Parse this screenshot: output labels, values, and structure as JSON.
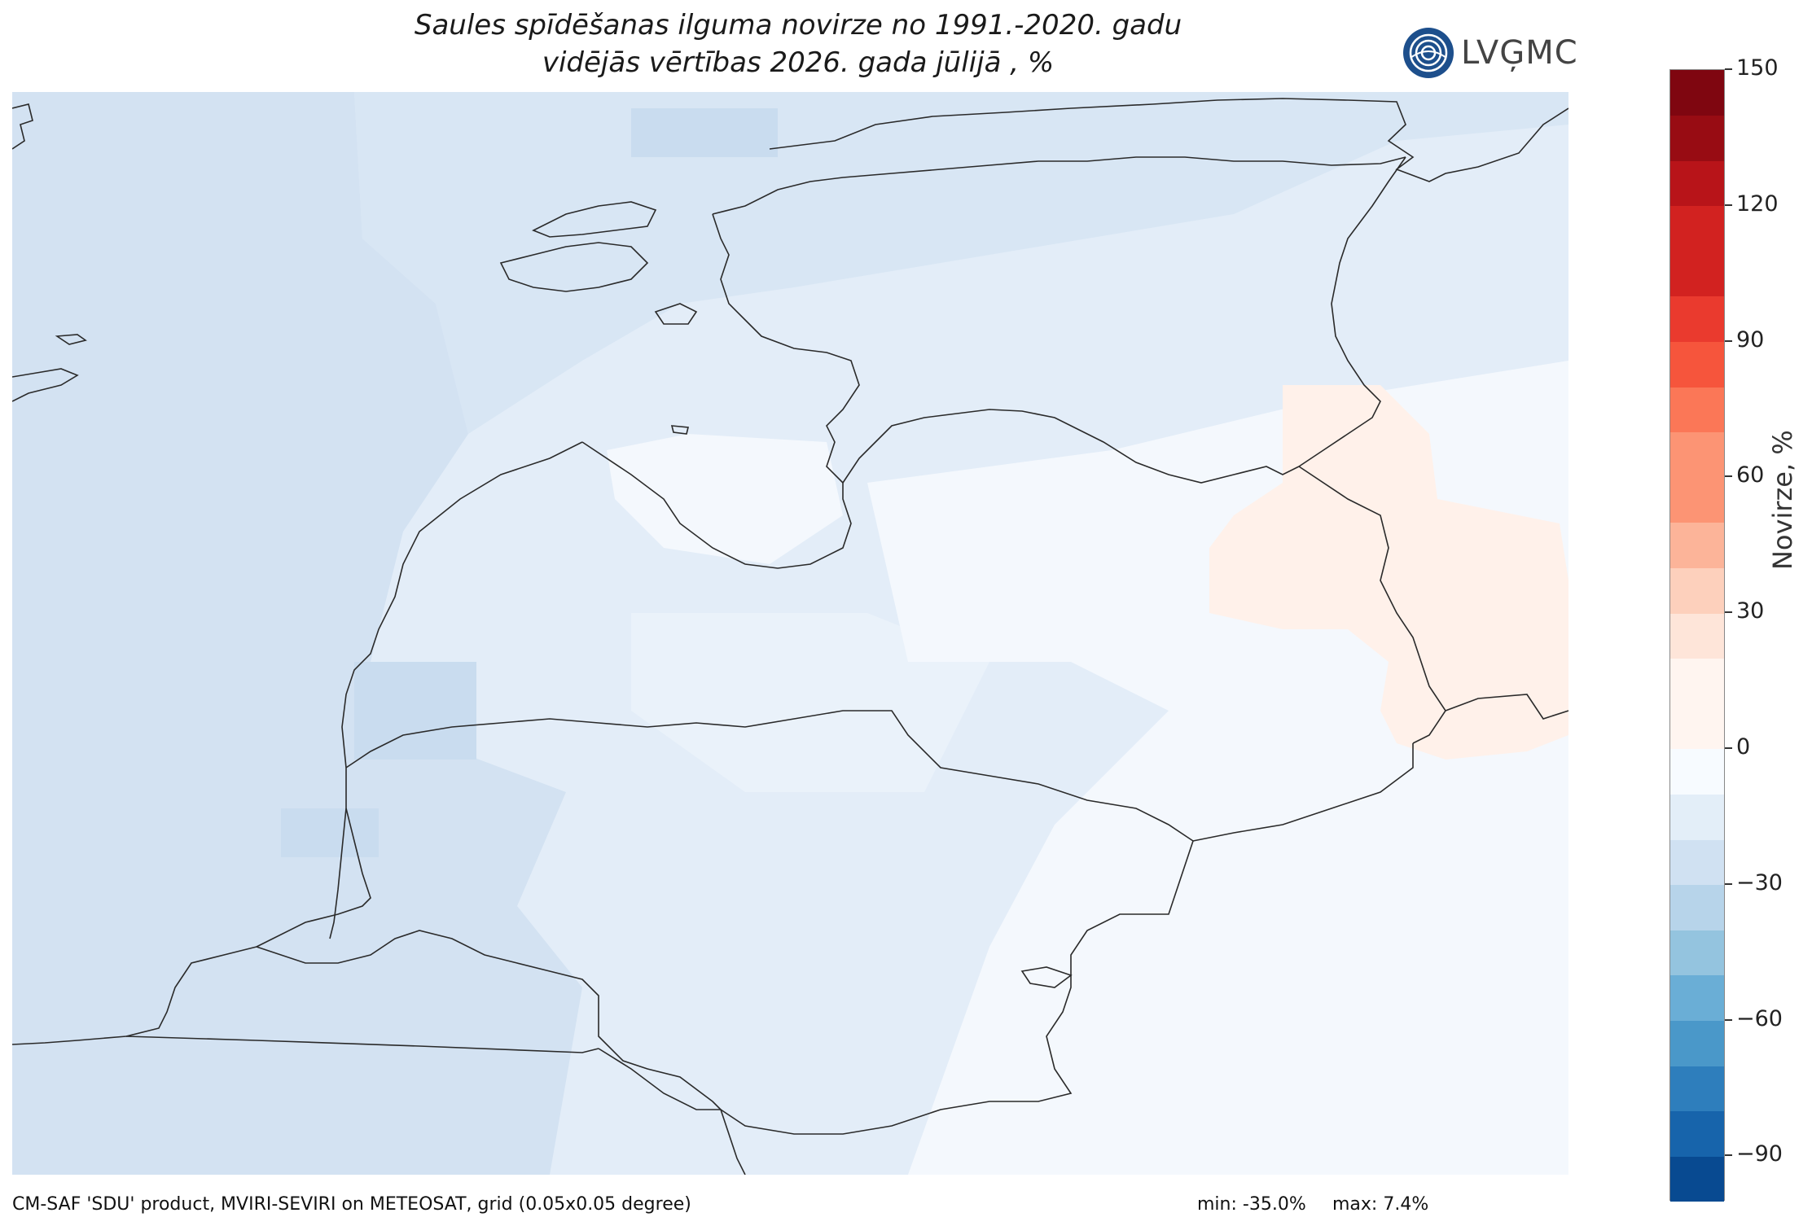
{
  "title_line1": "Saules spīdēšanas ilguma novirze no 1991.-2020. gadu",
  "title_line2": "vidējās vērtības 2026. gada jūlijā , %",
  "logo_text": "LVĢMC",
  "colorbar": {
    "label": "Novirze, %",
    "ticks": [
      "150",
      "120",
      "90",
      "60",
      "30",
      "0",
      "−30",
      "−60",
      "−90"
    ],
    "range": [
      -100,
      150
    ],
    "step": 10,
    "colors": [
      "#084a91",
      "#1764ab",
      "#2e7ebc",
      "#4a98c9",
      "#6aaed6",
      "#94c4df",
      "#b7d4ea",
      "#d0e1f2",
      "#e3eef8",
      "#f7fbff",
      "#fff5f0",
      "#fee5d9",
      "#fdd0bc",
      "#fcb499",
      "#fc9474",
      "#fb7757",
      "#f6553c",
      "#ea3a2e",
      "#d22220",
      "#b81419",
      "#980c13",
      "#7f0610"
    ],
    "color_scale_note": ""
  },
  "footer": {
    "source": "CM-SAF 'SDU' product, MVIRI-SEVIRI on METEOSAT, grid (0.05x0.05 degree)",
    "min": "min: -35.0%",
    "max": "max: 7.4%"
  },
  "map_colors": {
    "sea": "#d3e2f2",
    "land_west": "#dde9f5",
    "land_light": "#eef4fb",
    "land_white": "#f7fbff",
    "positive": "#fff1ea",
    "border": "#2a2a2a"
  }
}
